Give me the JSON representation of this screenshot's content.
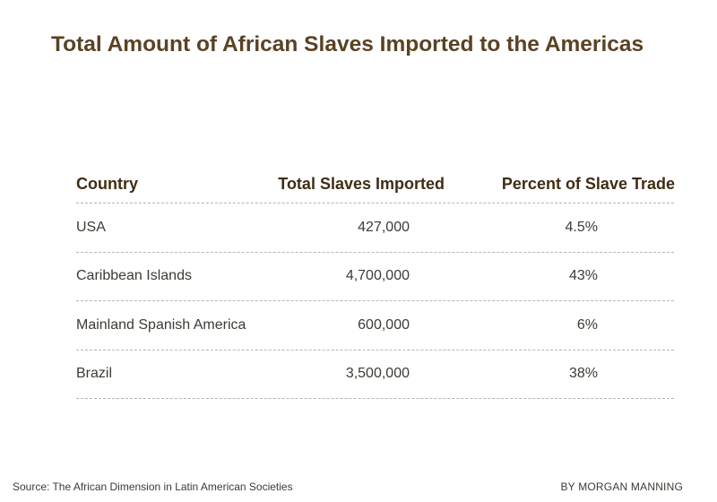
{
  "chart_data": {
    "type": "table",
    "title": "Total Amount of African Slaves Imported to the Americas",
    "columns": [
      "Country",
      "Total Slaves Imported",
      "Percent of Slave Trade"
    ],
    "rows": [
      [
        "USA",
        "427,000",
        "4.5%"
      ],
      [
        "Caribbean Islands",
        "4,700,000",
        "43%"
      ],
      [
        "Mainland Spanish America",
        "600,000",
        "6%"
      ],
      [
        "Brazil",
        "3,500,000",
        "38%"
      ]
    ],
    "source": "Source: The African Dimension in Latin American Societies",
    "byline": "BY MORGAN MANNING"
  }
}
